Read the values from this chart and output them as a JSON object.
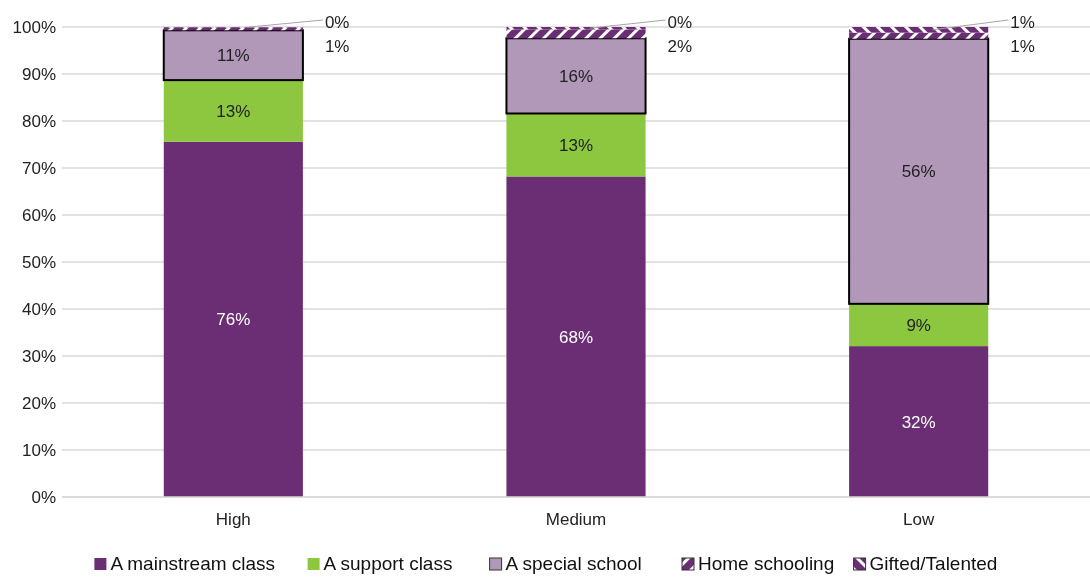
{
  "chart_data": {
    "type": "bar",
    "stacked": true,
    "categories": [
      "High",
      "Medium",
      "Low"
    ],
    "series": [
      {
        "name": "A mainstream class",
        "color": "#6b2d73",
        "values": [
          75.6,
          68.2,
          32.1
        ],
        "value_labels": [
          "76%",
          "68%",
          "32%"
        ]
      },
      {
        "name": "A support class",
        "color": "#8dc63f",
        "values": [
          13.1,
          13.4,
          9.0
        ],
        "value_labels": [
          "13%",
          "13%",
          "9%"
        ]
      },
      {
        "name": "A special school",
        "color": "#b197b8",
        "values": [
          10.6,
          16.0,
          56.4
        ],
        "value_labels": [
          "11%",
          "16%",
          "56%"
        ]
      },
      {
        "name": "Home schooling",
        "color": "#6b2d73",
        "values": [
          0.6,
          1.9,
          1.3
        ],
        "value_labels": [
          "1%",
          "2%",
          "1%"
        ]
      },
      {
        "name": "Gifted/Talented",
        "color": "#6b2d73",
        "values": [
          0.1,
          0.5,
          1.2
        ],
        "value_labels": [
          "0%",
          "0%",
          "1%"
        ]
      }
    ],
    "ylim": [
      0,
      100
    ],
    "yticks": [
      {
        "value": 0,
        "label": "0%"
      },
      {
        "value": 10,
        "label": "10%"
      },
      {
        "value": 20,
        "label": "20%"
      },
      {
        "value": 30,
        "label": "30%"
      },
      {
        "value": 40,
        "label": "40%"
      },
      {
        "value": 50,
        "label": "50%"
      },
      {
        "value": 60,
        "label": "60%"
      },
      {
        "value": 70,
        "label": "70%"
      },
      {
        "value": 80,
        "label": "80%"
      },
      {
        "value": 90,
        "label": "90%"
      },
      {
        "value": 100,
        "label": "100%"
      }
    ],
    "grid": "y",
    "legend": "bottom"
  }
}
